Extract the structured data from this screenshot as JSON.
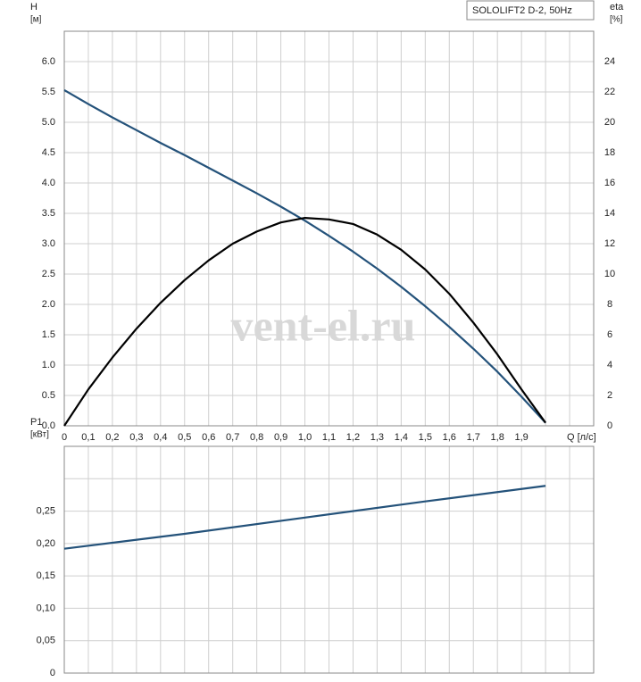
{
  "chart_data": [
    {
      "type": "line",
      "title": "SOLOLIFT2 D-2, 50Hz",
      "ylabel": "H",
      "yunit": "[м]",
      "y2label": "eta",
      "y2unit": "[%]",
      "xlabel": "Q [л/с]",
      "annotation": "vent-el.ru",
      "x": [
        0,
        0.1,
        0.2,
        0.3,
        0.4,
        0.5,
        0.6,
        0.7,
        0.8,
        0.9,
        1.0,
        1.1,
        1.2,
        1.3,
        1.4,
        1.5,
        1.6,
        1.7,
        1.8,
        1.9,
        2.0
      ],
      "series": [
        {
          "color": "#24527a",
          "values": [
            5.53,
            5.3,
            5.08,
            4.87,
            4.66,
            4.46,
            4.25,
            4.04,
            3.83,
            3.61,
            3.38,
            3.13,
            2.87,
            2.59,
            2.29,
            1.97,
            1.63,
            1.27,
            0.89,
            0.48,
            0.05
          ]
        },
        {
          "color": "#000000",
          "axis": "y2",
          "values": [
            0,
            2.4,
            4.5,
            6.4,
            8.1,
            9.6,
            10.9,
            12.0,
            12.8,
            13.4,
            13.7,
            13.6,
            13.3,
            12.6,
            11.6,
            10.3,
            8.7,
            6.8,
            4.7,
            2.4,
            0.2
          ]
        }
      ],
      "xlim": [
        0,
        2.2
      ],
      "xticks": [
        0,
        {
          "value": 0.1,
          "label": "0,1"
        },
        {
          "value": 0.2,
          "label": "0,2"
        },
        {
          "value": 0.3,
          "label": "0,3"
        },
        {
          "value": 0.4,
          "label": "0,4"
        },
        {
          "value": 0.5,
          "label": "0,5"
        },
        {
          "value": 0.6,
          "label": "0,6"
        },
        {
          "value": 0.7,
          "label": "0,7"
        },
        {
          "value": 0.8,
          "label": "0,8"
        },
        {
          "value": 0.9,
          "label": "0,9"
        },
        {
          "value": 1.0,
          "label": "1,0"
        },
        {
          "value": 1.1,
          "label": "1,1"
        },
        {
          "value": 1.2,
          "label": "1,2"
        },
        {
          "value": 1.3,
          "label": "1,3"
        },
        {
          "value": 1.4,
          "label": "1,4"
        },
        {
          "value": 1.5,
          "label": "1,5"
        },
        {
          "value": 1.6,
          "label": "1,6"
        },
        {
          "value": 1.7,
          "label": "1,7"
        },
        {
          "value": 1.8,
          "label": "1,8"
        },
        {
          "value": 1.9,
          "label": "1,9"
        }
      ],
      "xgrid": [
        2.0,
        2.1
      ],
      "ylim": [
        0,
        6.5
      ],
      "yticks": [
        {
          "value": 0,
          "label": "0.0"
        },
        0.5,
        {
          "value": 1,
          "label": "1.0"
        },
        1.5,
        {
          "value": 2,
          "label": "2.0"
        },
        2.5,
        {
          "value": 3,
          "label": "3.0"
        },
        3.5,
        {
          "value": 4,
          "label": "4.0"
        },
        4.5,
        {
          "value": 5,
          "label": "5.0"
        },
        5.5,
        {
          "value": 6,
          "label": "6.0"
        }
      ],
      "y2lim": [
        0,
        26
      ],
      "y2ticks": [
        0,
        2,
        4,
        6,
        8,
        10,
        12,
        14,
        16,
        18,
        20,
        22,
        24
      ],
      "grid": true
    },
    {
      "type": "line",
      "ylabel": "P1",
      "yunit": "[кВт]",
      "x": [
        0,
        0.5,
        1.0,
        1.5,
        2.0
      ],
      "series": [
        {
          "color": "#24527a",
          "values": [
            0.192,
            0.215,
            0.24,
            0.265,
            0.289
          ]
        }
      ],
      "xlim": [
        0,
        2.2
      ],
      "xgrid": [
        0,
        0.1,
        0.2,
        0.3,
        0.4,
        0.5,
        0.6,
        0.7,
        0.8,
        0.9,
        1.0,
        1.1,
        1.2,
        1.3,
        1.4,
        1.5,
        1.6,
        1.7,
        1.8,
        1.9,
        2.0,
        2.1
      ],
      "ylim": [
        0,
        0.35
      ],
      "yticks": [
        0,
        {
          "value": 0.05,
          "label": "0,05"
        },
        {
          "value": 0.1,
          "label": "0,10"
        },
        {
          "value": 0.15,
          "label": "0,15"
        },
        {
          "value": 0.2,
          "label": "0,20"
        },
        {
          "value": 0.25,
          "label": "0,25"
        }
      ],
      "ygrid": [
        0.3
      ],
      "grid": true
    }
  ]
}
